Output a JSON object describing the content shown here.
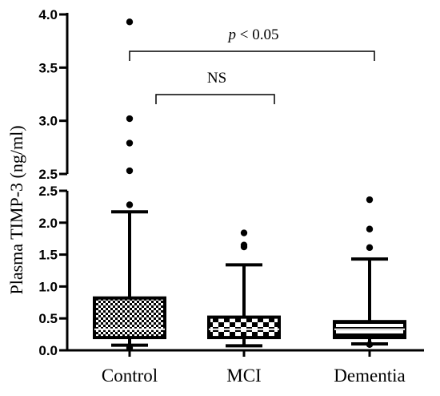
{
  "chart_data": {
    "type": "box",
    "title": "",
    "ylabel": "Plasma TIMP-3 (ng/ml)",
    "xlabel": "",
    "y_axis_break": true,
    "lower_segment": {
      "ylim": [
        0.0,
        2.5
      ],
      "ticks": [
        "0.0",
        "0.5",
        "1.0",
        "1.5",
        "2.0",
        "2.5"
      ]
    },
    "upper_segment": {
      "ylim": [
        2.5,
        4.0
      ],
      "ticks": [
        "2.5",
        "3.0",
        "3.5",
        "4.0"
      ]
    },
    "categories": [
      "Control",
      "MCI",
      "Dementia"
    ],
    "boxes": [
      {
        "name": "Control",
        "pattern": "checker-small",
        "whisker_low": 0.08,
        "q1": 0.2,
        "median": 0.33,
        "q3": 0.82,
        "whisker_high": 2.17,
        "outliers": [
          2.28,
          2.53,
          2.79,
          3.02,
          3.93,
          0.04
        ]
      },
      {
        "name": "MCI",
        "pattern": "checker-large",
        "whisker_low": 0.07,
        "q1": 0.2,
        "median": 0.33,
        "q3": 0.52,
        "whisker_high": 1.34,
        "outliers": [
          1.62,
          1.65,
          1.84
        ]
      },
      {
        "name": "Dementia",
        "pattern": "horizontal-lines",
        "whisker_low": 0.1,
        "q1": 0.2,
        "median": 0.33,
        "q3": 0.45,
        "whisker_high": 1.43,
        "outliers": [
          1.61,
          1.9,
          2.36,
          0.09
        ]
      }
    ],
    "annotations": [
      {
        "from": "Control",
        "to": "MCI",
        "text": "NS"
      },
      {
        "from": "Control",
        "to": "Dementia",
        "text_italic": "p",
        "text": " < 0.05"
      }
    ]
  }
}
